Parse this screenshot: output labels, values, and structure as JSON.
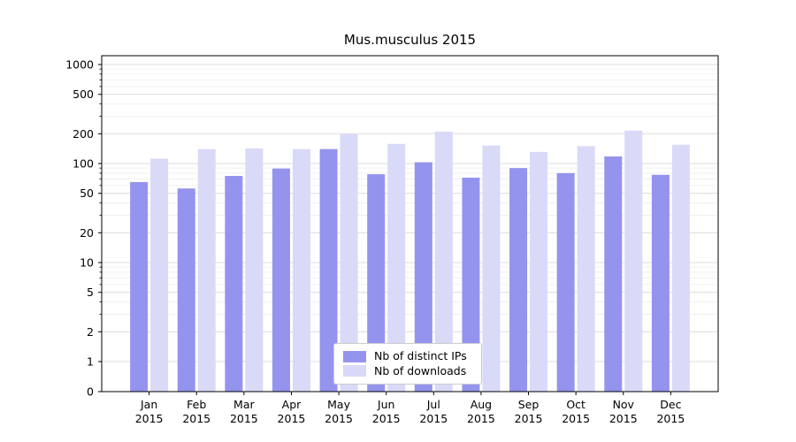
{
  "title": "Mus.musculus 2015",
  "legend": {
    "items": [
      {
        "label": "Nb of distinct IPs",
        "color": "#9494ee"
      },
      {
        "label": "Nb of downloads",
        "color": "#d9d9f8"
      }
    ]
  },
  "chart_data": {
    "type": "bar",
    "title": "Mus.musculus 2015",
    "categories": [
      "Jan 2015",
      "Feb 2015",
      "Mar 2015",
      "Apr 2015",
      "May 2015",
      "Jun 2015",
      "Jul 2015",
      "Aug 2015",
      "Sep 2015",
      "Oct 2015",
      "Nov 2015",
      "Dec 2015"
    ],
    "series": [
      {
        "name": "Nb of distinct IPs",
        "color": "#9494ee",
        "values": [
          65,
          56,
          75,
          89,
          140,
          78,
          103,
          72,
          90,
          80,
          118,
          77
        ]
      },
      {
        "name": "Nb of downloads",
        "color": "#d9d9f8",
        "values": [
          112,
          140,
          142,
          140,
          198,
          158,
          210,
          152,
          131,
          150,
          215,
          155
        ]
      }
    ],
    "yscale": "symlog",
    "yticks": [
      0,
      1,
      2,
      5,
      10,
      20,
      50,
      100,
      200,
      500,
      1000
    ],
    "ylim": [
      0,
      1300
    ],
    "grid": true,
    "legend_position": "lower center",
    "xlabel": "",
    "ylabel": ""
  }
}
